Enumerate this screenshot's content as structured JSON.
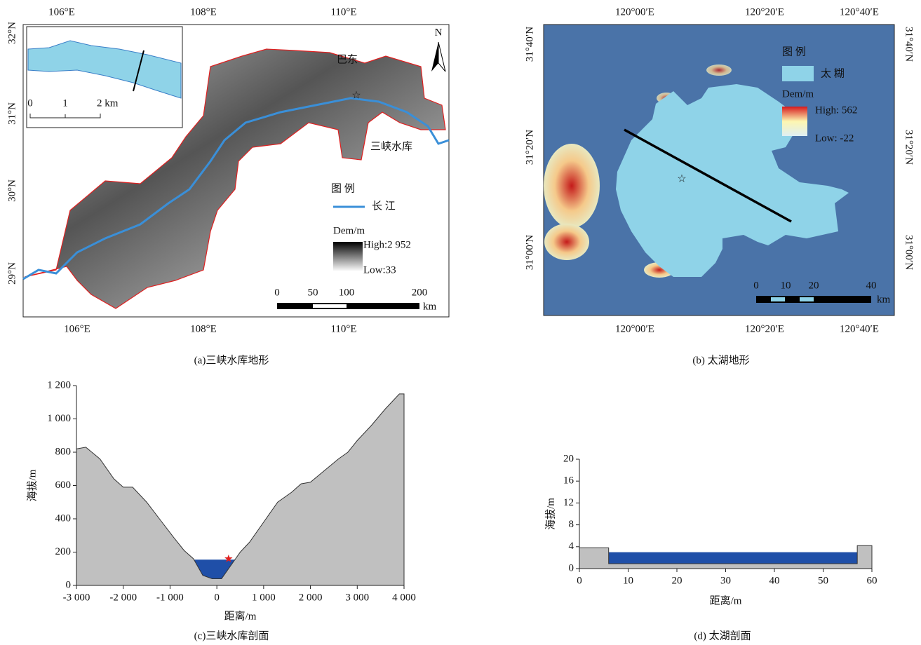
{
  "map_a": {
    "caption": "(a)三峡水库地形",
    "lon_ticks": [
      "106°E",
      "108°E",
      "110°E"
    ],
    "lat_ticks": [
      "32°N",
      "31°N",
      "30°N",
      "29°N"
    ],
    "places": [
      "巴东",
      "三峡水库"
    ],
    "north": "N",
    "legend": {
      "title": "图 例",
      "river": "长 江",
      "dem_title": "Dem/m",
      "high": "High:2 952",
      "low": "Low:33"
    },
    "scale": {
      "ticks": [
        "0",
        "50",
        "100",
        "200"
      ],
      "unit": "km"
    },
    "inset_scale": [
      "0",
      "1",
      "2 km"
    ]
  },
  "map_b": {
    "caption": "(b) 太湖地形",
    "lon_ticks": [
      "120°00′E",
      "120°20′E",
      "120°40′E"
    ],
    "lat_ticks": [
      "31°40′N",
      "31°20′N",
      "31°00′N"
    ],
    "legend": {
      "title": "图 例",
      "lake": "太 糊",
      "dem_title": "Dem/m",
      "high": "High: 562",
      "low": "Low: -22"
    },
    "scale": {
      "ticks": [
        "0",
        "10",
        "20",
        "40"
      ],
      "unit": "km"
    }
  },
  "chart_data": [
    {
      "type": "area",
      "caption": "(c)三峡水库剖面",
      "x_label": "距离/m",
      "y_label": "海拔/m",
      "xlim": [
        -3000,
        4000
      ],
      "xticks": [
        {
          "value": -3000,
          "label": "-3 000"
        },
        {
          "value": -2000,
          "label": "-2 000"
        },
        {
          "value": -1000,
          "label": "-1 000"
        },
        0,
        {
          "value": 1000,
          "label": "1 000"
        },
        {
          "value": 2000,
          "label": "2 000"
        },
        {
          "value": 3000,
          "label": "3 000"
        },
        {
          "value": 4000,
          "label": "4 000"
        }
      ],
      "ylim": [
        0,
        1200
      ],
      "yticks": [
        0,
        200,
        400,
        600,
        800,
        {
          "value": 1000,
          "label": "1 000"
        },
        {
          "value": 1200,
          "label": "1 200"
        }
      ],
      "series": [
        {
          "color": "#1f4fa8",
          "x": [
            -600,
            450
          ],
          "values": [
            155,
            155
          ]
        },
        {
          "color": "#c0c0c0",
          "stroke": "#333333",
          "x": [
            -3000,
            -2800,
            -2500,
            -2200,
            -2000,
            -1800,
            -1500,
            -1200,
            -900,
            -700,
            -500,
            -300,
            -100,
            100,
            300,
            500,
            700,
            1000,
            1300,
            1600,
            1800,
            2000,
            2300,
            2600,
            2800,
            3000,
            3300,
            3600,
            3900,
            4000
          ],
          "values": [
            820,
            830,
            760,
            640,
            590,
            590,
            500,
            390,
            280,
            210,
            160,
            60,
            40,
            40,
            120,
            200,
            260,
            380,
            500,
            560,
            610,
            620,
            690,
            760,
            800,
            870,
            960,
            1060,
            1150,
            1150
          ]
        }
      ],
      "markers": [
        {
          "x": 250,
          "y": 160,
          "color": "#e02020"
        }
      ]
    },
    {
      "type": "area",
      "caption": "(d) 太湖剖面",
      "x_label": "距离/m",
      "y_label": "海拔/m",
      "xlim": [
        0,
        60
      ],
      "xticks": [
        0,
        10,
        20,
        30,
        40,
        50,
        60
      ],
      "ylim": [
        0,
        20
      ],
      "yticks": [
        0,
        4,
        8,
        12,
        16,
        20
      ],
      "series": [
        {
          "color": "#1f4fa8",
          "x": [
            6,
            57
          ],
          "values": [
            3,
            3
          ]
        },
        {
          "color": "#c0c0c0",
          "stroke": "#333333",
          "x": [
            0,
            6,
            6,
            57,
            57,
            60
          ],
          "values": [
            3.8,
            3.8,
            0.9,
            0.9,
            4.2,
            4.2
          ]
        }
      ],
      "markers": []
    }
  ]
}
